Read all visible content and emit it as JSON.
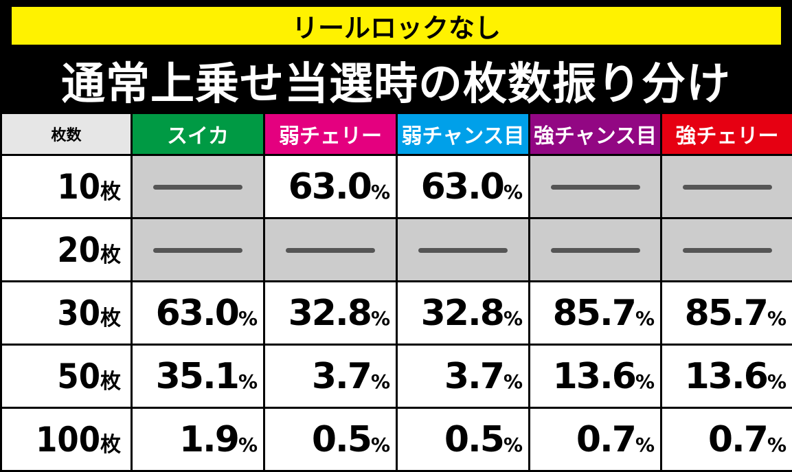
{
  "banner": "リールロックなし",
  "title": "通常上乗せ当選時の枚数振り分け",
  "corner_label": "枚数",
  "columns": [
    {
      "label": "スイカ",
      "color": "#009a44"
    },
    {
      "label": "弱チェリー",
      "color": "#e4007f"
    },
    {
      "label": "弱チャンス目",
      "color": "#00a0e9"
    },
    {
      "label": "強チャンス目",
      "color": "#920783"
    },
    {
      "label": "強チェリー",
      "color": "#e60012"
    }
  ],
  "rows": [
    {
      "num": "10",
      "unit": "枚",
      "cells": [
        "",
        "63.0",
        "63.0",
        "",
        ""
      ]
    },
    {
      "num": "20",
      "unit": "枚",
      "cells": [
        "",
        "",
        "",
        "",
        ""
      ]
    },
    {
      "num": "30",
      "unit": "枚",
      "cells": [
        "63.0",
        "32.8",
        "32.8",
        "85.7",
        "85.7"
      ]
    },
    {
      "num": "50",
      "unit": "枚",
      "cells": [
        "35.1",
        "3.7",
        "3.7",
        "13.6",
        "13.6"
      ]
    },
    {
      "num": "100",
      "unit": "枚",
      "cells": [
        "1.9",
        "0.5",
        "0.5",
        "0.7",
        "0.7"
      ]
    }
  ],
  "percent_sign": "%"
}
